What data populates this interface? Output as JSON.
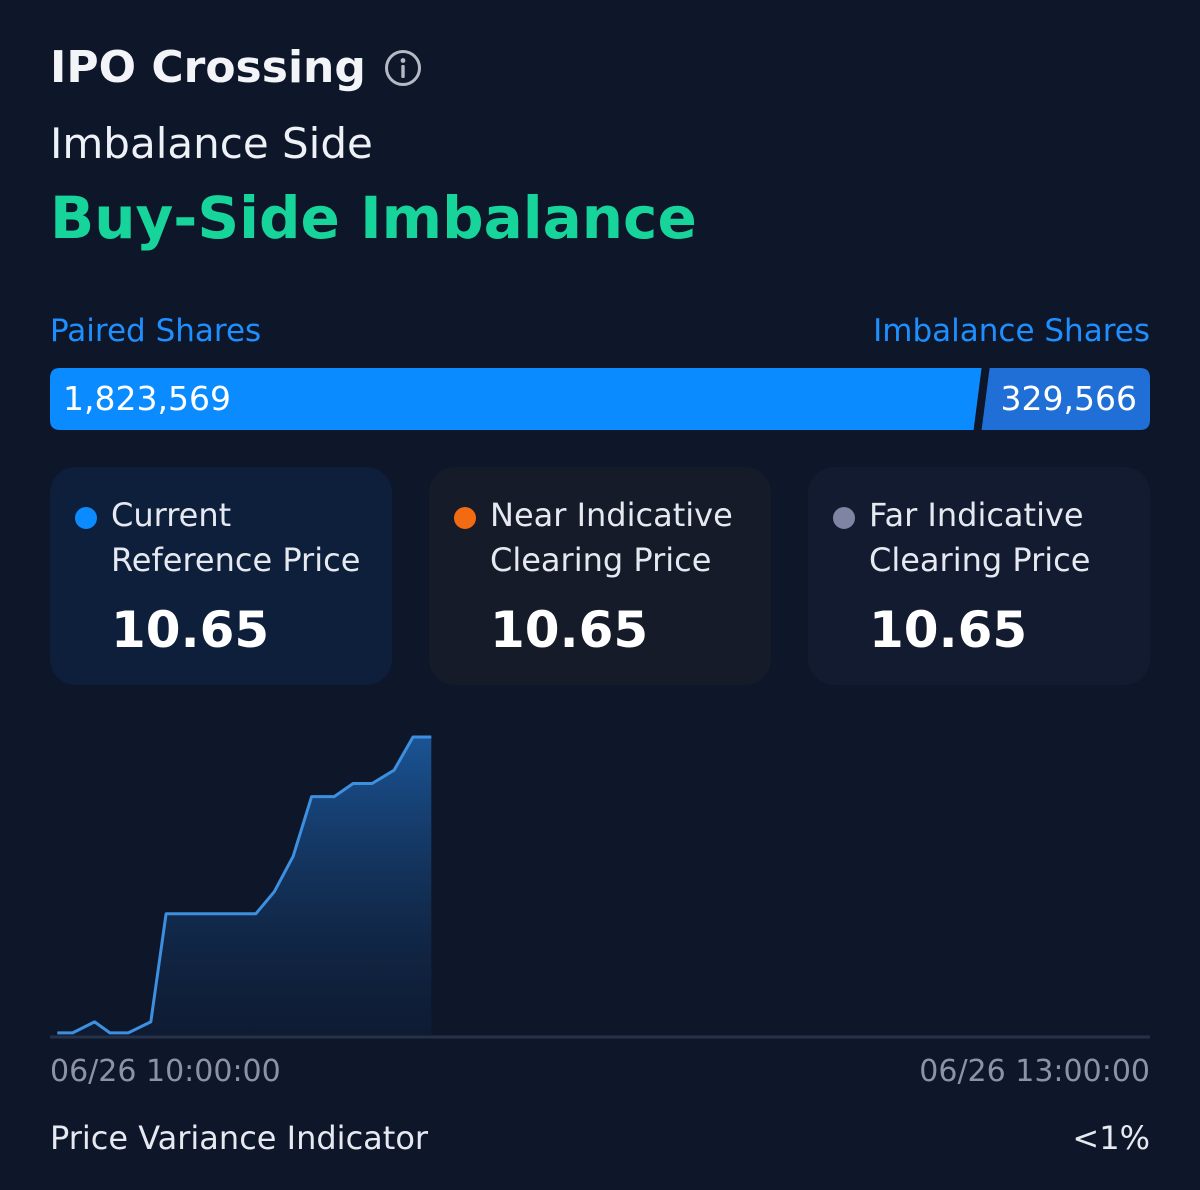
{
  "header": {
    "title": "IPO Crossing",
    "info_icon": "info-icon"
  },
  "imbalance": {
    "label": "Imbalance Side",
    "side": "Buy-Side Imbalance",
    "side_color": "#17d49a"
  },
  "shares": {
    "paired_label": "Paired Shares",
    "imbalance_label": "Imbalance Shares",
    "paired_value": "1,823,569",
    "imbalance_value": "329,566",
    "paired_fraction": 0.8469,
    "paired_color": "#0a8bff",
    "imbalance_color": "#1f6fd6"
  },
  "cards": [
    {
      "label_line1": "Current",
      "label_line2": "Reference Price",
      "value": "10.65",
      "dot_color": "#0a8bff"
    },
    {
      "label_line1": "Near Indicative",
      "label_line2": "Clearing Price",
      "value": "10.65",
      "dot_color": "#f26a12"
    },
    {
      "label_line1": "Far Indicative",
      "label_line2": "Clearing Price",
      "value": "10.65",
      "dot_color": "#7f84a3"
    }
  ],
  "chart_data": {
    "type": "area",
    "x_start_label": "06/26 10:00:00",
    "x_end_label": "06/26 13:00:00",
    "x_range_minutes": [
      0,
      180
    ],
    "y_range": [
      0,
      100
    ],
    "line_color": "#3d8fe0",
    "points": [
      {
        "x": 1.2,
        "y": 0.7
      },
      {
        "x": 3.7,
        "y": 0.7
      },
      {
        "x": 7.3,
        "y": 4.4
      },
      {
        "x": 9.8,
        "y": 0.7
      },
      {
        "x": 12.8,
        "y": 0.7
      },
      {
        "x": 16.5,
        "y": 4.4
      },
      {
        "x": 19.0,
        "y": 40.7
      },
      {
        "x": 33.7,
        "y": 40.7
      },
      {
        "x": 36.7,
        "y": 48.1
      },
      {
        "x": 39.8,
        "y": 60.0
      },
      {
        "x": 42.8,
        "y": 80.0
      },
      {
        "x": 46.5,
        "y": 80.0
      },
      {
        "x": 49.6,
        "y": 84.4
      },
      {
        "x": 52.7,
        "y": 84.4
      },
      {
        "x": 56.3,
        "y": 88.9
      },
      {
        "x": 59.4,
        "y": 100.0
      },
      {
        "x": 62.4,
        "y": 100.0
      }
    ]
  },
  "footer": {
    "piv_label": "Price Variance Indicator",
    "piv_value": "<1%"
  }
}
